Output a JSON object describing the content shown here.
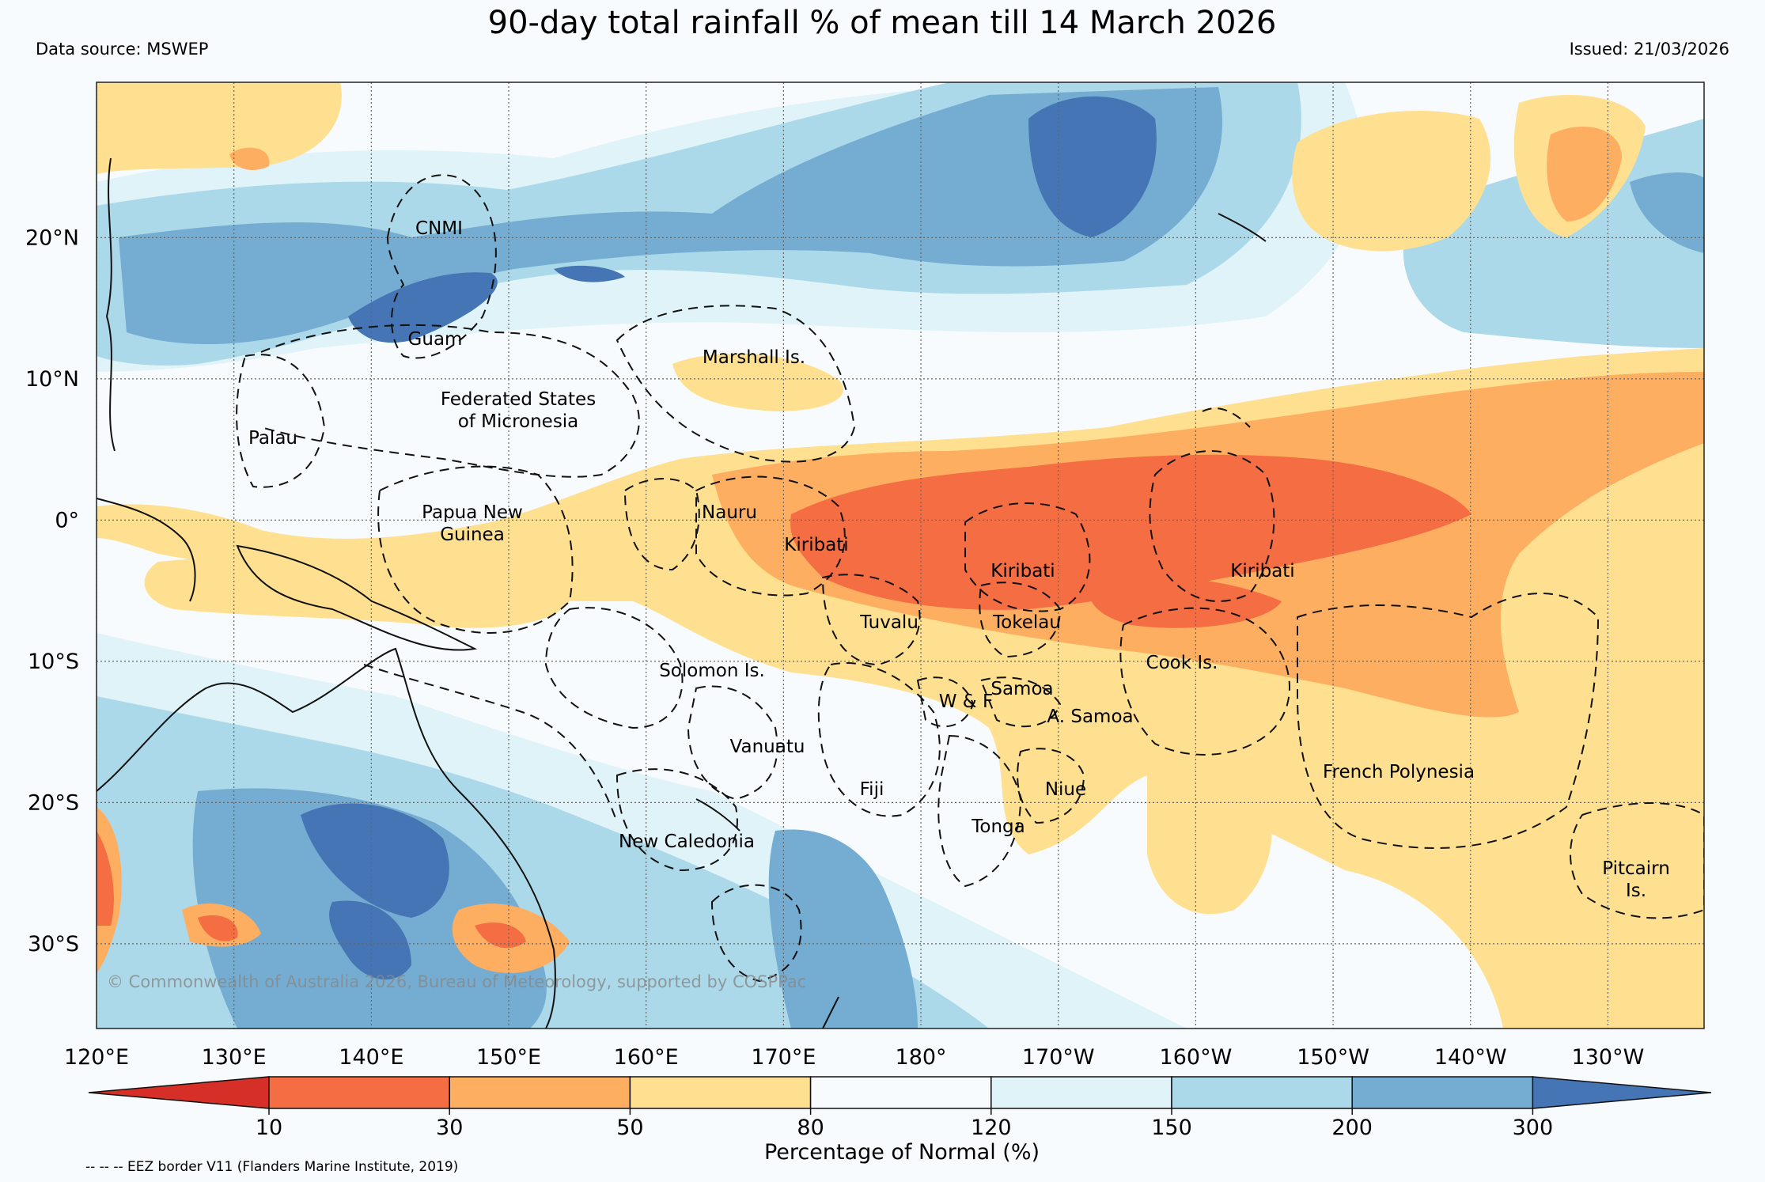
{
  "title": "90-day total rainfall % of mean till 14 March 2026",
  "data_source": "Data source: MSWEP",
  "issued": "Issued: 21/03/2026",
  "copyright": "© Commonwealth of Australia 2026, Bureau of Meteorology, supported by COSPPac",
  "map": {
    "lon_labels": [
      "120°E",
      "130°E",
      "140°E",
      "150°E",
      "160°E",
      "170°E",
      "180°",
      "170°W",
      "160°W",
      "150°W",
      "140°W",
      "130°W"
    ],
    "lat_labels": [
      "20°N",
      "10°N",
      "0°",
      "10°S",
      "20°S",
      "30°S"
    ],
    "lon_range_east": [
      120,
      237
    ],
    "lat_range": [
      -36,
      31
    ],
    "grid": true,
    "regions": [
      {
        "name": "CNMI",
        "lines": [
          "CNMI"
        ]
      },
      {
        "name": "Guam",
        "lines": [
          "Guam"
        ]
      },
      {
        "name": "Marshall Is.",
        "lines": [
          "Marshall Is."
        ]
      },
      {
        "name": "Federated States of Micronesia",
        "lines": [
          "Federated States",
          "of Micronesia"
        ]
      },
      {
        "name": "Palau",
        "lines": [
          "Palau"
        ]
      },
      {
        "name": "Papua New Guinea",
        "lines": [
          "Papua New",
          "Guinea"
        ]
      },
      {
        "name": "Nauru",
        "lines": [
          "Nauru"
        ]
      },
      {
        "name": "Kiribati-west",
        "lines": [
          "Kiribati"
        ]
      },
      {
        "name": "Kiribati-central",
        "lines": [
          "Kiribati"
        ]
      },
      {
        "name": "Kiribati-east",
        "lines": [
          "Kiribati"
        ]
      },
      {
        "name": "Tuvalu",
        "lines": [
          "Tuvalu"
        ]
      },
      {
        "name": "Tokelau",
        "lines": [
          "Tokelau"
        ]
      },
      {
        "name": "Cook Is.",
        "lines": [
          "Cook Is."
        ]
      },
      {
        "name": "Solomon Is.",
        "lines": [
          "Solomon Is."
        ]
      },
      {
        "name": "Samoa",
        "lines": [
          "Samoa"
        ]
      },
      {
        "name": "W & F",
        "lines": [
          "W & F"
        ]
      },
      {
        "name": "A. Samoa",
        "lines": [
          "A. Samoa"
        ]
      },
      {
        "name": "Vanuatu",
        "lines": [
          "Vanuatu"
        ]
      },
      {
        "name": "French Polynesia",
        "lines": [
          "French Polynesia"
        ]
      },
      {
        "name": "Fiji",
        "lines": [
          "Fiji"
        ]
      },
      {
        "name": "Niue",
        "lines": [
          "Niue"
        ]
      },
      {
        "name": "Tonga",
        "lines": [
          "Tonga"
        ]
      },
      {
        "name": "New Caledonia",
        "lines": [
          "New Caledonia"
        ]
      },
      {
        "name": "Pitcairn Is.",
        "lines": [
          "Pitcairn",
          "Is."
        ]
      }
    ]
  },
  "colorbar": {
    "label": "Percentage of Normal (%)",
    "ticks": [
      "10",
      "30",
      "50",
      "80",
      "120",
      "150",
      "200",
      "300"
    ],
    "colors": [
      "#d62f27",
      "#f46d43",
      "#fdae61",
      "#fee090",
      "#f7fbfd",
      "#e0f3f8",
      "#abd9e9",
      "#74add1",
      "#4575b4"
    ]
  },
  "footnote": "-- -- -- EEZ border V11 (Flanders Marine Institute, 2019)"
}
